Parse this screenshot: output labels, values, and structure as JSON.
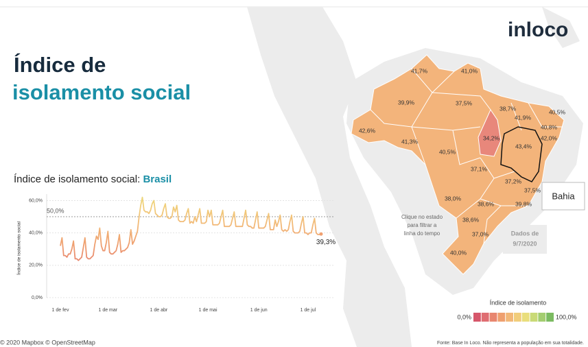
{
  "header": {
    "title_line1": "Índice de",
    "title_line2": "isolamento social",
    "logo": "inloco"
  },
  "chart_data": {
    "type": "line",
    "title": "Índice de isolamento social: ",
    "title_highlight": "Brasil",
    "y_label": "Índice de isolamento social",
    "categories": [
      "1 de fev",
      null,
      null,
      null,
      null,
      null,
      null,
      null,
      null,
      null,
      null,
      null,
      null,
      null,
      null,
      null,
      null,
      null,
      null,
      null,
      null,
      null,
      null,
      null,
      null,
      null,
      null,
      null,
      null,
      "1 de mar",
      null,
      null,
      null,
      null,
      null,
      null,
      null,
      null,
      null,
      null,
      null,
      null,
      null,
      null,
      null,
      null,
      null,
      null,
      null,
      null,
      null,
      null,
      null,
      null,
      null,
      null,
      null,
      null,
      null,
      null,
      "1 de abr",
      null,
      null,
      null,
      null,
      null,
      null,
      null,
      null,
      null,
      null,
      null,
      null,
      null,
      null,
      null,
      null,
      null,
      null,
      null,
      null,
      null,
      null,
      null,
      null,
      null,
      null,
      null,
      null,
      null,
      "1 de mai",
      null,
      null,
      null,
      null,
      null,
      null,
      null,
      null,
      null,
      null,
      null,
      null,
      null,
      null,
      null,
      null,
      null,
      null,
      null,
      null,
      null,
      null,
      null,
      null,
      null,
      null,
      null,
      null,
      null,
      null,
      "1 de jun",
      null,
      null,
      null,
      null,
      null,
      null,
      null,
      null,
      null,
      null,
      null,
      null,
      null,
      null,
      null,
      null,
      null,
      null,
      null,
      null,
      null,
      null,
      null,
      null,
      null,
      null,
      null,
      null,
      null,
      "1 de jul",
      null,
      null,
      null,
      null,
      null,
      null,
      null,
      null
    ],
    "values": [
      32,
      37,
      26,
      26,
      25,
      27,
      27,
      30,
      35,
      24,
      24,
      23,
      24,
      25,
      31,
      37,
      25,
      24,
      24,
      25,
      26,
      33,
      38,
      36,
      43,
      32,
      29,
      29,
      34,
      41,
      28,
      27,
      27,
      28,
      29,
      33,
      39,
      28,
      29,
      29,
      30,
      31,
      34,
      42,
      33,
      35,
      38,
      41,
      50,
      57,
      62,
      54,
      53,
      53,
      52,
      54,
      58,
      60,
      52,
      51,
      50,
      50,
      51,
      55,
      58,
      50,
      49,
      49,
      50,
      56,
      53,
      57,
      48,
      47,
      47,
      47,
      48,
      52,
      55,
      46,
      47,
      46,
      50,
      47,
      51,
      55,
      46,
      46,
      46,
      47,
      54,
      50,
      54,
      45,
      45,
      45,
      45,
      46,
      50,
      54,
      44,
      44,
      44,
      44,
      45,
      49,
      53,
      44,
      44,
      44,
      44,
      44,
      49,
      54,
      45,
      44,
      44,
      43,
      43,
      48,
      53,
      43,
      43,
      43,
      43,
      44,
      48,
      52,
      42,
      42,
      42,
      48,
      44,
      47,
      51,
      42,
      41,
      42,
      41,
      42,
      47,
      51,
      41,
      40,
      40,
      40,
      41,
      46,
      50,
      40,
      40,
      39,
      40,
      40,
      45,
      49,
      40,
      39,
      39,
      39.3
    ],
    "value_labels": [
      null,
      null,
      null,
      null,
      null,
      null,
      null,
      null,
      null,
      null,
      null,
      null,
      null,
      null,
      null,
      null,
      null,
      null,
      null,
      null,
      null,
      null,
      null,
      null,
      null,
      null,
      null,
      null,
      null,
      null,
      null,
      null,
      null,
      null,
      null,
      null,
      null,
      null,
      null,
      null,
      null,
      null,
      null,
      null,
      null,
      null,
      null,
      null,
      null,
      null,
      null,
      null,
      null,
      null,
      null,
      null,
      null,
      null,
      null,
      null,
      null,
      null,
      null,
      null,
      null,
      null,
      null,
      null,
      null,
      null,
      null,
      null,
      null,
      null,
      null,
      null,
      null,
      null,
      null,
      null,
      null,
      null,
      null,
      null,
      null,
      null,
      null,
      null,
      null,
      null,
      null,
      null,
      null,
      null,
      null,
      null,
      null,
      null,
      null,
      null,
      null,
      null,
      null,
      null,
      null,
      null,
      null,
      null,
      null,
      null,
      null,
      null,
      null,
      null,
      null,
      null,
      null,
      null,
      null,
      null,
      null,
      null,
      null,
      null,
      null,
      null,
      null,
      null,
      null,
      null,
      null,
      null,
      null,
      null,
      null,
      null,
      null,
      null,
      null,
      null,
      null,
      null,
      null,
      null,
      null,
      null,
      null,
      null,
      null,
      null,
      null,
      null,
      null,
      null,
      null,
      null,
      null,
      null,
      null,
      "39,3%"
    ],
    "ylim": [
      0,
      64
    ],
    "yticks": [
      {
        "value": 0,
        "label": "0,0%"
      },
      {
        "value": 20,
        "label": "20,0%"
      },
      {
        "value": 40,
        "label": "40,0%"
      },
      {
        "value": 60,
        "label": "60,0%"
      }
    ],
    "reference_line": {
      "value": 50,
      "label": "50,0%"
    },
    "grid": true
  },
  "map": {
    "labels": [
      "41,7%",
      "41,0%",
      "39,9%",
      "37,5%",
      "38,7%",
      "41,9%",
      "40,5%",
      "40,8%",
      "42,0%",
      "42,6%",
      "41,3%",
      "34,2%",
      "43,4%",
      "40,5%",
      "37,1%",
      "37,2%",
      "37,5%",
      "38,0%",
      "38,6%",
      "39,8%",
      "38,6%",
      "37,0%",
      "40,0%"
    ],
    "tooltip": "Bahia",
    "hint": [
      "Clique no estado",
      "para filtrar a",
      "linha do tempo"
    ],
    "date_box": [
      "Dados de",
      "9/7/2020"
    ],
    "legend": {
      "title": "Índice de isolamento",
      "min_label": "0,0%",
      "max_label": "100,0%",
      "colors": [
        "#d6566a",
        "#df6e72",
        "#e8866f",
        "#efa06f",
        "#f2b878",
        "#f1cd7b",
        "#e9de7c",
        "#c9da77",
        "#a3cd70",
        "#7bbb61"
      ]
    }
  },
  "footer": {
    "attribution": "© 2020 Mapbox © OpenStreetMap",
    "source": "Fonte: Base In Loco. Não representa a população em sua totalidade."
  }
}
